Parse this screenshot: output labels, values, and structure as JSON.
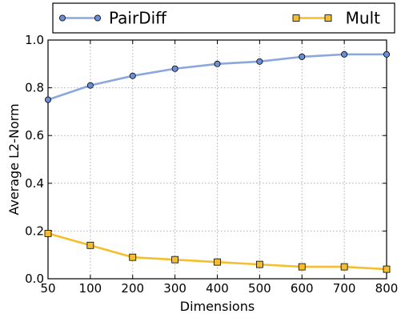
{
  "chart_data": {
    "type": "line",
    "x": [
      50,
      100,
      200,
      300,
      400,
      500,
      600,
      700,
      800
    ],
    "series": [
      {
        "name": "PairDiff",
        "values": [
          0.75,
          0.81,
          0.85,
          0.88,
          0.9,
          0.91,
          0.93,
          0.94,
          0.94
        ],
        "color": "#8ba7dc",
        "marker_fill": "#6b8fd6",
        "marker": "circle"
      },
      {
        "name": "Mult",
        "values": [
          0.19,
          0.14,
          0.09,
          0.08,
          0.07,
          0.06,
          0.05,
          0.05,
          0.04
        ],
        "color": "#f5be2e",
        "marker_fill": "#f5be2e",
        "marker": "square"
      }
    ],
    "xlabel": "Dimensions",
    "ylabel": "Average L2-Norm",
    "x_ticks": [
      "50",
      "100",
      "200",
      "300",
      "400",
      "500",
      "600",
      "700",
      "800"
    ],
    "y_ticks": [
      "0.0",
      "0.2",
      "0.4",
      "0.6",
      "0.8",
      "1.0"
    ],
    "ylim": [
      0.0,
      1.0
    ],
    "grid": true,
    "x_scale": "categorical-evenly-spaced",
    "legend_placement": "top-outside"
  }
}
